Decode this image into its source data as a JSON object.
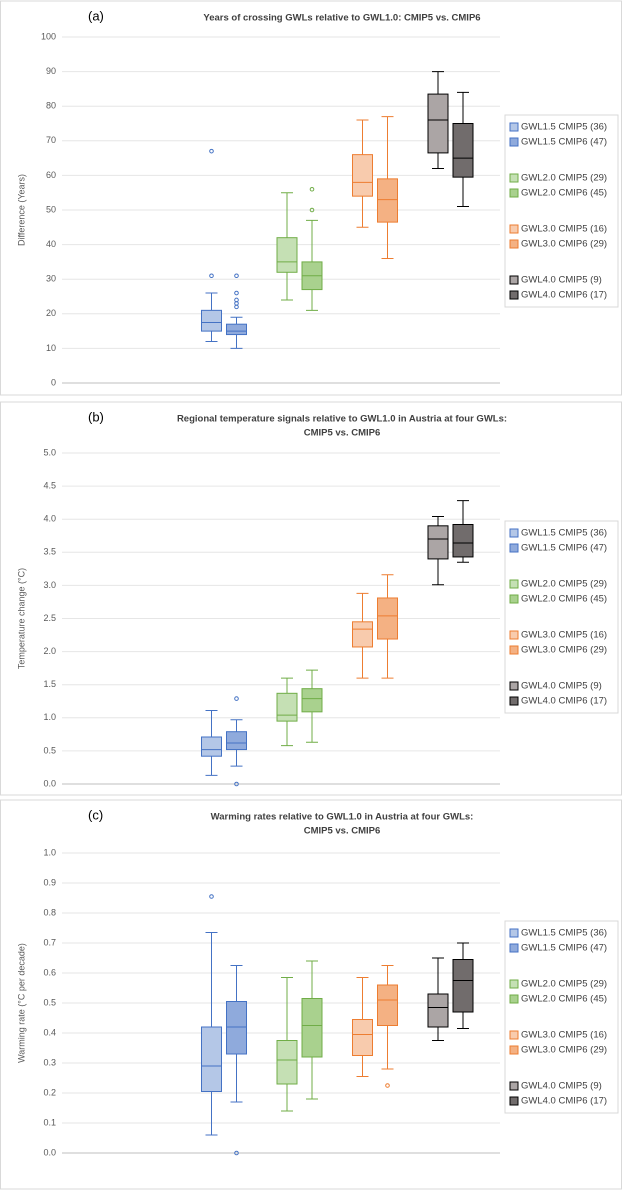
{
  "chart_data": [
    {
      "type": "box",
      "panel_label": "(a)",
      "title": [
        "Years of crossing GWLs relative to GWL1.0: CMIP5 vs. CMIP6"
      ],
      "ylabel": "Difference (Years)",
      "ylim": [
        0,
        100
      ],
      "yticks": [
        0,
        10,
        20,
        30,
        40,
        50,
        60,
        70,
        80,
        90,
        100
      ],
      "grid": true,
      "series": [
        {
          "name": "GWL1.5 CMIP5 (36)",
          "color": "#4472c4",
          "fill": "#b4c7e7",
          "min": 12,
          "q1": 15,
          "median": 17.5,
          "q3": 21,
          "max": 26,
          "outliers": [
            31,
            67
          ]
        },
        {
          "name": "GWL1.5 CMIP6 (47)",
          "color": "#4472c4",
          "fill": "#8faadc",
          "min": 10,
          "q1": 14,
          "median": 15,
          "q3": 17,
          "max": 19,
          "outliers": [
            22,
            23,
            24,
            26,
            31
          ]
        },
        {
          "name": "GWL2.0 CMIP5 (29)",
          "color": "#70ad47",
          "fill": "#c5e0b4",
          "min": 24,
          "q1": 32,
          "median": 35,
          "q3": 42,
          "max": 55,
          "outliers": []
        },
        {
          "name": "GWL2.0 CMIP6 (45)",
          "color": "#70ad47",
          "fill": "#a9d18e",
          "min": 21,
          "q1": 27,
          "median": 31,
          "q3": 35,
          "max": 47,
          "outliers": [
            50,
            56
          ]
        },
        {
          "name": "GWL3.0 CMIP5 (16)",
          "color": "#ed7d31",
          "fill": "#f8cbad",
          "min": 45,
          "q1": 54,
          "median": 58,
          "q3": 66,
          "max": 76,
          "outliers": []
        },
        {
          "name": "GWL3.0 CMIP6 (29)",
          "color": "#ed7d31",
          "fill": "#f4b183",
          "min": 36,
          "q1": 46.5,
          "median": 53,
          "q3": 59,
          "max": 77,
          "outliers": []
        },
        {
          "name": "GWL4.0 CMIP5 (9)",
          "color": "#000000",
          "fill": "#aba5a5",
          "min": 62,
          "q1": 66.5,
          "median": 76,
          "q3": 83.5,
          "max": 90,
          "outliers": []
        },
        {
          "name": "GWL4.0 CMIP6 (17)",
          "color": "#000000",
          "fill": "#716c6c",
          "min": 51,
          "q1": 59.5,
          "median": 65,
          "q3": 75,
          "max": 84,
          "outliers": []
        }
      ]
    },
    {
      "type": "box",
      "panel_label": "(b)",
      "title": [
        "Regional temperature signals relative to GWL1.0 in Austria at four GWLs:",
        "CMIP5 vs. CMIP6"
      ],
      "ylabel": "Temperature change (°C)",
      "ylim": [
        0,
        5
      ],
      "yticks": [
        {
          "value": 0,
          "label": "0.0"
        },
        0.5,
        {
          "value": 1,
          "label": "1.0"
        },
        1.5,
        {
          "value": 2,
          "label": "2.0"
        },
        2.5,
        {
          "value": 3,
          "label": "3.0"
        },
        3.5,
        {
          "value": 4,
          "label": "4.0"
        },
        4.5,
        {
          "value": 5,
          "label": "5.0"
        }
      ],
      "grid": true,
      "series": [
        {
          "name": "GWL1.5 CMIP5 (36)",
          "color": "#4472c4",
          "fill": "#b4c7e7",
          "min": 0.13,
          "q1": 0.42,
          "median": 0.52,
          "q3": 0.71,
          "max": 1.11,
          "outliers": []
        },
        {
          "name": "GWL1.5 CMIP6 (47)",
          "color": "#4472c4",
          "fill": "#8faadc",
          "min": 0.27,
          "q1": 0.52,
          "median": 0.62,
          "q3": 0.79,
          "max": 0.97,
          "outliers": [
            1.29,
            0
          ]
        },
        {
          "name": "GWL2.0 CMIP5 (29)",
          "color": "#70ad47",
          "fill": "#c5e0b4",
          "min": 0.58,
          "q1": 0.95,
          "median": 1.04,
          "q3": 1.37,
          "max": 1.6,
          "outliers": []
        },
        {
          "name": "GWL2.0 CMIP6 (45)",
          "color": "#70ad47",
          "fill": "#a9d18e",
          "min": 0.63,
          "q1": 1.09,
          "median": 1.29,
          "q3": 1.44,
          "max": 1.72,
          "outliers": []
        },
        {
          "name": "GWL3.0 CMIP5 (16)",
          "color": "#ed7d31",
          "fill": "#f8cbad",
          "min": 1.6,
          "q1": 2.07,
          "median": 2.34,
          "q3": 2.45,
          "max": 2.88,
          "outliers": []
        },
        {
          "name": "GWL3.0 CMIP6 (29)",
          "color": "#ed7d31",
          "fill": "#f4b183",
          "min": 1.6,
          "q1": 2.19,
          "median": 2.54,
          "q3": 2.81,
          "max": 3.16,
          "outliers": []
        },
        {
          "name": "GWL4.0 CMIP5 (9)",
          "color": "#000000",
          "fill": "#aba5a5",
          "min": 3.01,
          "q1": 3.4,
          "median": 3.7,
          "q3": 3.9,
          "max": 4.04,
          "outliers": []
        },
        {
          "name": "GWL4.0 CMIP6 (17)",
          "color": "#000000",
          "fill": "#716c6c",
          "min": 3.35,
          "q1": 3.43,
          "median": 3.64,
          "q3": 3.92,
          "max": 4.28,
          "outliers": []
        }
      ]
    },
    {
      "type": "box",
      "panel_label": "(c)",
      "title": [
        "Warming rates relative to GWL1.0 in Austria at four GWLs:",
        "CMIP5 vs. CMIP6"
      ],
      "ylabel": "Warming rate (°C per decade)",
      "ylim": [
        0,
        1
      ],
      "yticks": [
        {
          "value": 0,
          "label": "0.0"
        },
        0.1,
        0.2,
        0.3,
        0.4,
        0.5,
        0.6,
        0.7,
        0.8,
        0.9,
        {
          "value": 1,
          "label": "1.0"
        }
      ],
      "grid": true,
      "series": [
        {
          "name": "GWL1.5 CMIP5 (36)",
          "color": "#4472c4",
          "fill": "#b4c7e7",
          "min": 0.06,
          "q1": 0.205,
          "median": 0.29,
          "q3": 0.42,
          "max": 0.735,
          "outliers": [
            0.855
          ]
        },
        {
          "name": "GWL1.5 CMIP6 (47)",
          "color": "#4472c4",
          "fill": "#8faadc",
          "min": 0.17,
          "q1": 0.33,
          "median": 0.42,
          "q3": 0.505,
          "max": 0.625,
          "outliers": [
            0
          ]
        },
        {
          "name": "GWL2.0 CMIP5 (29)",
          "color": "#70ad47",
          "fill": "#c5e0b4",
          "min": 0.14,
          "q1": 0.23,
          "median": 0.31,
          "q3": 0.375,
          "max": 0.585,
          "outliers": []
        },
        {
          "name": "GWL2.0 CMIP6 (45)",
          "color": "#70ad47",
          "fill": "#a9d18e",
          "min": 0.18,
          "q1": 0.32,
          "median": 0.425,
          "q3": 0.515,
          "max": 0.64,
          "outliers": []
        },
        {
          "name": "GWL3.0 CMIP5 (16)",
          "color": "#ed7d31",
          "fill": "#f8cbad",
          "min": 0.255,
          "q1": 0.325,
          "median": 0.395,
          "q3": 0.445,
          "max": 0.585,
          "outliers": []
        },
        {
          "name": "GWL3.0 CMIP6 (29)",
          "color": "#ed7d31",
          "fill": "#f4b183",
          "min": 0.28,
          "q1": 0.425,
          "median": 0.51,
          "q3": 0.56,
          "max": 0.625,
          "outliers": [
            0.225
          ]
        },
        {
          "name": "GWL4.0 CMIP5 (9)",
          "color": "#000000",
          "fill": "#aba5a5",
          "min": 0.375,
          "q1": 0.42,
          "median": 0.485,
          "q3": 0.53,
          "max": 0.65,
          "outliers": []
        },
        {
          "name": "GWL4.0 CMIP6 (17)",
          "color": "#000000",
          "fill": "#716c6c",
          "min": 0.415,
          "q1": 0.47,
          "median": 0.575,
          "q3": 0.645,
          "max": 0.7,
          "outliers": []
        }
      ]
    }
  ]
}
